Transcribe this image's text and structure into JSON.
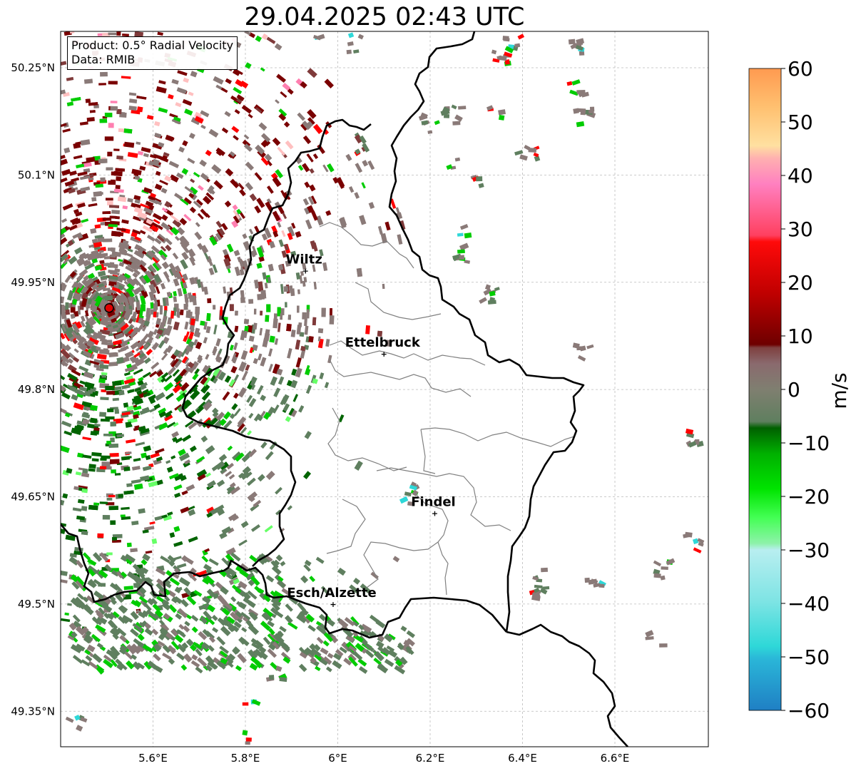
{
  "title": "29.04.2025 02:43 UTC",
  "info": {
    "product": "Product: 0.5° Radial Velocity",
    "data": "Data: RMIB"
  },
  "map": {
    "lon_range": [
      5.4,
      6.8
    ],
    "lat_range": [
      49.3,
      50.3
    ],
    "x_ticks": [
      {
        "value": 5.6,
        "label": "5.6°E"
      },
      {
        "value": 5.8,
        "label": "5.8°E"
      },
      {
        "value": 6.0,
        "label": "6°E"
      },
      {
        "value": 6.2,
        "label": "6.2°E"
      },
      {
        "value": 6.4,
        "label": "6.4°E"
      },
      {
        "value": 6.6,
        "label": "6.6°E"
      }
    ],
    "y_ticks": [
      {
        "value": 50.25,
        "label": "50.25°N"
      },
      {
        "value": 50.1,
        "label": "50.1°N"
      },
      {
        "value": 49.95,
        "label": "49.95°N"
      },
      {
        "value": 49.8,
        "label": "49.8°N"
      },
      {
        "value": 49.65,
        "label": "49.65°N"
      },
      {
        "value": 49.5,
        "label": "49.5°N"
      },
      {
        "value": 49.35,
        "label": "49.35°N"
      }
    ],
    "radar_site": {
      "lon": 5.505,
      "lat": 49.914
    },
    "cities": [
      {
        "name": "Wiltz",
        "lon": 5.93,
        "lat": 49.966
      },
      {
        "name": "Ettelbruck",
        "lon": 6.1,
        "lat": 49.85
      },
      {
        "name": "Findel",
        "lon": 6.21,
        "lat": 49.627
      },
      {
        "name": "Esch/Alzette",
        "lon": 5.99,
        "lat": 49.5
      }
    ]
  },
  "colorbar": {
    "label": "m/s",
    "min": -60,
    "max": 60,
    "ticks": [
      {
        "value": 60,
        "label": "60"
      },
      {
        "value": 50,
        "label": "50"
      },
      {
        "value": 40,
        "label": "40"
      },
      {
        "value": 30,
        "label": "30"
      },
      {
        "value": 20,
        "label": "20"
      },
      {
        "value": 10,
        "label": "10"
      },
      {
        "value": 0,
        "label": "0"
      },
      {
        "value": -10,
        "label": "−10"
      },
      {
        "value": -20,
        "label": "−20"
      },
      {
        "value": -30,
        "label": "−30"
      },
      {
        "value": -40,
        "label": "−40"
      },
      {
        "value": -50,
        "label": "−50"
      },
      {
        "value": -60,
        "label": "−60"
      }
    ],
    "colors": {
      "deep_blue": "#1f7fc4",
      "cyan": "#2ed8d8",
      "pale_cyan": "#b4ecec",
      "light_green": "#66ff66",
      "green": "#00cc00",
      "dark_green": "#006400",
      "grey_green": "#5f7f5f",
      "neutral": "#8a7a78",
      "brown_red": "#7f3a3a",
      "dark_red": "#7a0000",
      "red": "#ff0000",
      "pink": "#ff7fb0",
      "light_pink": "#ffc0c0",
      "peach": "#ffdca0",
      "orange": "#ff9a50"
    }
  }
}
